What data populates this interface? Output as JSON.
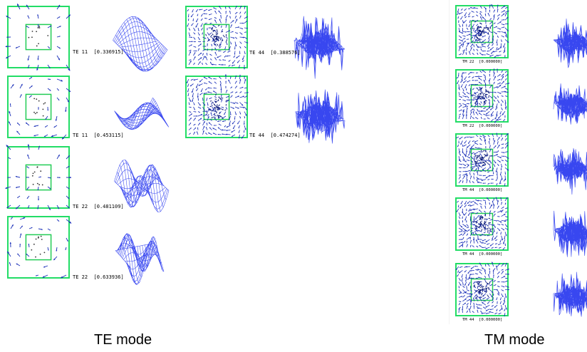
{
  "colors": {
    "frame": "#22dd66",
    "field": "#1a2fb8",
    "surface": "#2233ee",
    "inner": "#22cc55"
  },
  "te_panel": {
    "caption": "TE mode",
    "modes": [
      {
        "label": "TE 11",
        "value": "[0.336915]"
      },
      {
        "label": "TE 11",
        "value": "[0.453115]"
      },
      {
        "label": "TE 22",
        "value": "[0.481109]"
      },
      {
        "label": "TE 22",
        "value": "[0.633936]"
      },
      {
        "label": "TE 44",
        "value": "[0.388576]"
      },
      {
        "label": "TE 44",
        "value": "[0.474274]"
      }
    ]
  },
  "tm_panel": {
    "caption": "TM mode",
    "modes": [
      {
        "label": "TM 22",
        "value": "[0.000000]"
      },
      {
        "label": "TM 22",
        "value": "[0.000000]"
      },
      {
        "label": "TM 44",
        "value": "[0.000000]"
      },
      {
        "label": "TM 44",
        "value": "[0.000000]"
      },
      {
        "label": "TM 44",
        "value": "[0.000000]"
      }
    ]
  }
}
